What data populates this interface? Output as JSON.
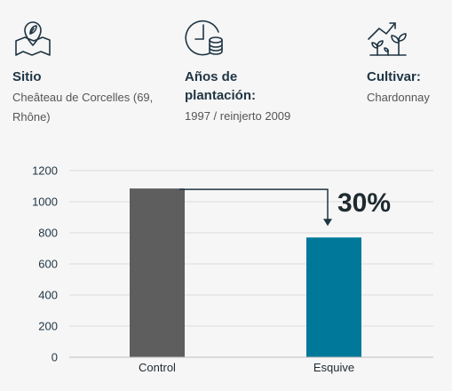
{
  "info": {
    "site": {
      "title": "Sitio",
      "value": "Cheâteau de Corcelles (69, Rhône)",
      "icon": "map-location-icon"
    },
    "years": {
      "title": "Años de plantación:",
      "value": "1997 / reinjerto 2009",
      "icon": "clock-coins-icon"
    },
    "cultivar": {
      "title": "Cultivar:",
      "value": "Chardonnay",
      "icon": "plant-growth-icon"
    }
  },
  "chart_data": {
    "type": "bar",
    "categories": [
      "Control",
      "Esquive"
    ],
    "values": [
      1085,
      770
    ],
    "ylim": [
      0,
      1200
    ],
    "yticks": [
      0,
      200,
      400,
      600,
      800,
      1000,
      1200
    ],
    "colors": [
      "#5e5e5e",
      "#00789a"
    ],
    "grid": true,
    "annotation": {
      "text": "30%",
      "from": "Control",
      "to": "Esquive"
    }
  }
}
